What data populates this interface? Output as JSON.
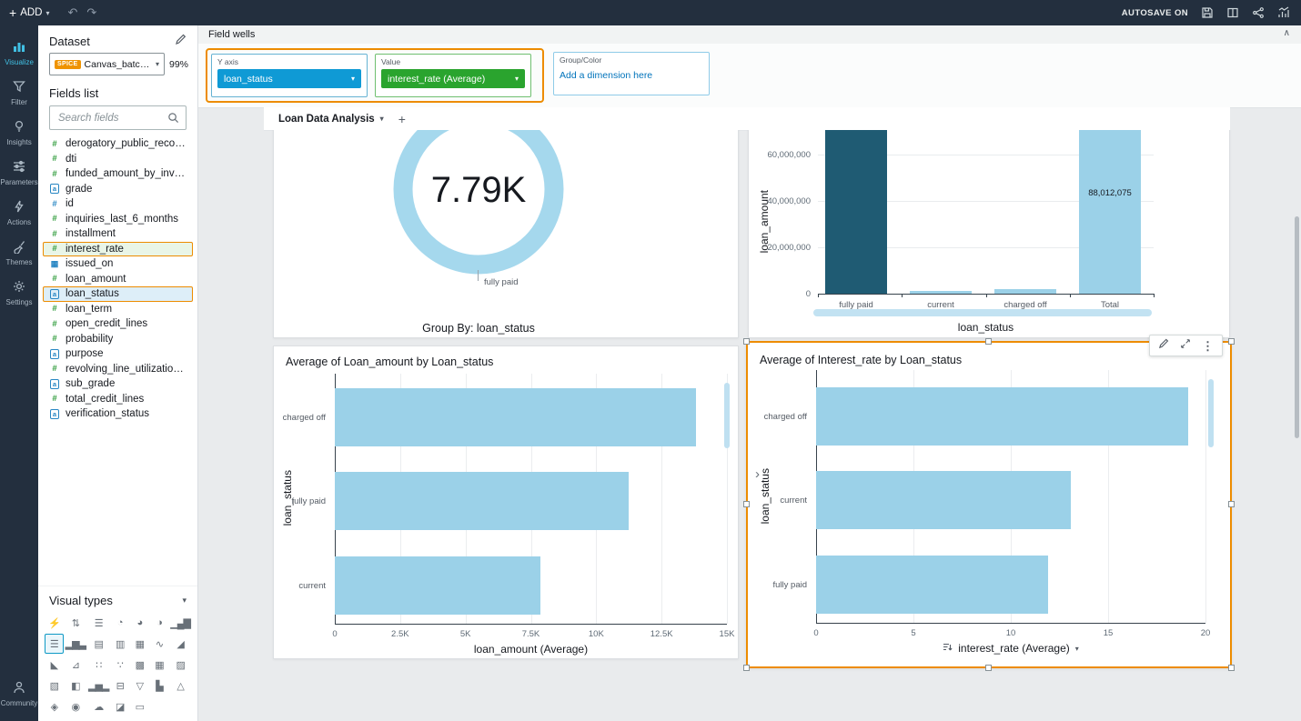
{
  "topbar": {
    "add_label": "ADD",
    "autosave_label": "AUTOSAVE ON"
  },
  "rail": {
    "items": [
      {
        "label": "Visualize"
      },
      {
        "label": "Filter"
      },
      {
        "label": "Insights"
      },
      {
        "label": "Parameters"
      },
      {
        "label": "Actions"
      },
      {
        "label": "Themes"
      },
      {
        "label": "Settings"
      }
    ],
    "bottom": {
      "label": "Community"
    }
  },
  "dataset": {
    "title": "Dataset",
    "spice_badge": "SPICE",
    "name": "Canvas_batchIn...",
    "pct": "99%",
    "fields_title": "Fields list",
    "search_placeholder": "Search fields",
    "fields": [
      {
        "name": "derogatory_public_records",
        "_class": "numeric"
      },
      {
        "name": "dti",
        "_class": "numeric"
      },
      {
        "name": "funded_amount_by_investors",
        "_class": "numeric"
      },
      {
        "name": "grade",
        "_class": "string"
      },
      {
        "name": "id",
        "_class": "numeric dim"
      },
      {
        "name": "inquiries_last_6_months",
        "_class": "numeric"
      },
      {
        "name": "installment",
        "_class": "numeric"
      },
      {
        "name": "interest_rate",
        "_class": "numeric sel-green"
      },
      {
        "name": "issued_on",
        "_class": "date"
      },
      {
        "name": "loan_amount",
        "_class": "numeric"
      },
      {
        "name": "loan_status",
        "_class": "string sel-blue"
      },
      {
        "name": "loan_term",
        "_class": "numeric"
      },
      {
        "name": "open_credit_lines",
        "_class": "numeric"
      },
      {
        "name": "probability",
        "_class": "numeric"
      },
      {
        "name": "purpose",
        "_class": "string"
      },
      {
        "name": "revolving_line_utilization_rate",
        "_class": "numeric"
      },
      {
        "name": "sub_grade",
        "_class": "string"
      },
      {
        "name": "total_credit_lines",
        "_class": "numeric"
      },
      {
        "name": "verification_status",
        "_class": "string"
      }
    ],
    "visual_types_title": "Visual types",
    "visual_types": [
      {
        "name": "auto-graph",
        "glyph": "⚡"
      },
      {
        "name": "kpi",
        "glyph": "⇅"
      },
      {
        "name": "horizontal-bar",
        "glyph": "☰"
      },
      {
        "name": "donut-chart",
        "glyph": "◔"
      },
      {
        "name": "pie-chart",
        "glyph": "◕"
      },
      {
        "name": "gauge-chart",
        "glyph": "◑"
      },
      {
        "name": "vertical-bar",
        "glyph": "▁▄▇"
      },
      {
        "name": "horizontal-bar-chart",
        "glyph": "☰",
        "_class": "selected"
      },
      {
        "name": "vertical-bar-chart",
        "glyph": "▂▆▃"
      },
      {
        "name": "horizontal-stacked-bar",
        "glyph": "▤"
      },
      {
        "name": "vertical-stacked-bar",
        "glyph": "▥"
      },
      {
        "name": "stacked-100-bar",
        "glyph": "▦"
      },
      {
        "name": "line-chart",
        "glyph": "∿"
      },
      {
        "name": "area-chart",
        "glyph": "◢"
      },
      {
        "name": "stacked-area-chart",
        "glyph": "◣"
      },
      {
        "name": "combo-chart",
        "glyph": "⊿"
      },
      {
        "name": "scatter-plot",
        "glyph": "∷"
      },
      {
        "name": "bubble-chart",
        "glyph": "∵"
      },
      {
        "name": "table",
        "glyph": "▩"
      },
      {
        "name": "pivot-table",
        "glyph": "▦"
      },
      {
        "name": "grid",
        "glyph": "▨"
      },
      {
        "name": "heatmap",
        "glyph": "▧"
      },
      {
        "name": "treemap",
        "glyph": "◧"
      },
      {
        "name": "histogram",
        "glyph": "▂▅▂"
      },
      {
        "name": "box-plot",
        "glyph": "⊟"
      },
      {
        "name": "funnel-chart",
        "glyph": "▽"
      },
      {
        "name": "waterfall-chart",
        "glyph": "▙"
      },
      {
        "name": "radar-chart",
        "glyph": "△"
      },
      {
        "name": "geospatial-map",
        "glyph": "◈"
      },
      {
        "name": "insight",
        "glyph": "◉"
      },
      {
        "name": "word-cloud",
        "glyph": "☁"
      },
      {
        "name": "image",
        "glyph": "◪"
      },
      {
        "name": "text-box",
        "glyph": "▭"
      }
    ]
  },
  "field_wells": {
    "header": "Field wells",
    "y_axis": {
      "label": "Y axis",
      "value": "loan_status"
    },
    "value": {
      "label": "Value",
      "value": "interest_rate (Average)"
    },
    "group_color": {
      "label": "Group/Color",
      "placeholder": "Add a dimension here"
    }
  },
  "sheet": {
    "tab_label": "Loan Data Analysis"
  },
  "colors": {
    "accent_orange": "#ed8c00",
    "dimension_blue": "#0f9ad5",
    "measure_green": "#2aa42e",
    "bar_light_blue": "#9bd1e8",
    "bar_dark_blue": "#1f5b73",
    "donut_ring": "#a5d8ed",
    "topbar_navy": "#232f3e"
  },
  "chart_data": [
    {
      "type": "donut",
      "center_value": "7.79K",
      "segment_label": "fully paid",
      "footer": "Group By: loan_status",
      "segments": [
        {
          "label": "fully paid",
          "share": 0.97
        }
      ]
    },
    {
      "type": "bar",
      "orientation": "vertical",
      "categories": [
        "fully paid",
        "current",
        "charged off",
        "Total"
      ],
      "values": [
        85000000,
        1200000,
        1812075,
        88012075
      ],
      "total_label": "88,012,075",
      "ylabel": "loan_amount",
      "xlabel": "loan_status",
      "yticks": [
        0,
        20000000,
        40000000,
        60000000
      ],
      "ytick_labels": [
        "0",
        "20,000,000",
        "40,000,000",
        "60,000,000"
      ],
      "bar_colors": [
        "#1f5b73",
        "#9bd1e8",
        "#9bd1e8",
        "#9bd1e8"
      ]
    },
    {
      "type": "bar",
      "orientation": "horizontal",
      "title": "Average of Loan_amount by Loan_status",
      "categories": [
        "charged off",
        "fully paid",
        "current"
      ],
      "values": [
        13800,
        11250,
        7850
      ],
      "xmax": 15000,
      "xticks": [
        "0",
        "2.5K",
        "5K",
        "7.5K",
        "10K",
        "12.5K",
        "15K"
      ],
      "xlabel": "loan_amount (Average)",
      "ylabel": "loan_status"
    },
    {
      "type": "bar",
      "orientation": "horizontal",
      "title": "Average of Interest_rate by Loan_status",
      "categories": [
        "charged off",
        "current",
        "fully paid"
      ],
      "values": [
        19.1,
        13.1,
        11.9
      ],
      "xmax": 20,
      "xticks": [
        "0",
        "5",
        "10",
        "15",
        "20"
      ],
      "xlabel": "interest_rate (Average)",
      "ylabel": "loan_status",
      "selected": true
    }
  ]
}
